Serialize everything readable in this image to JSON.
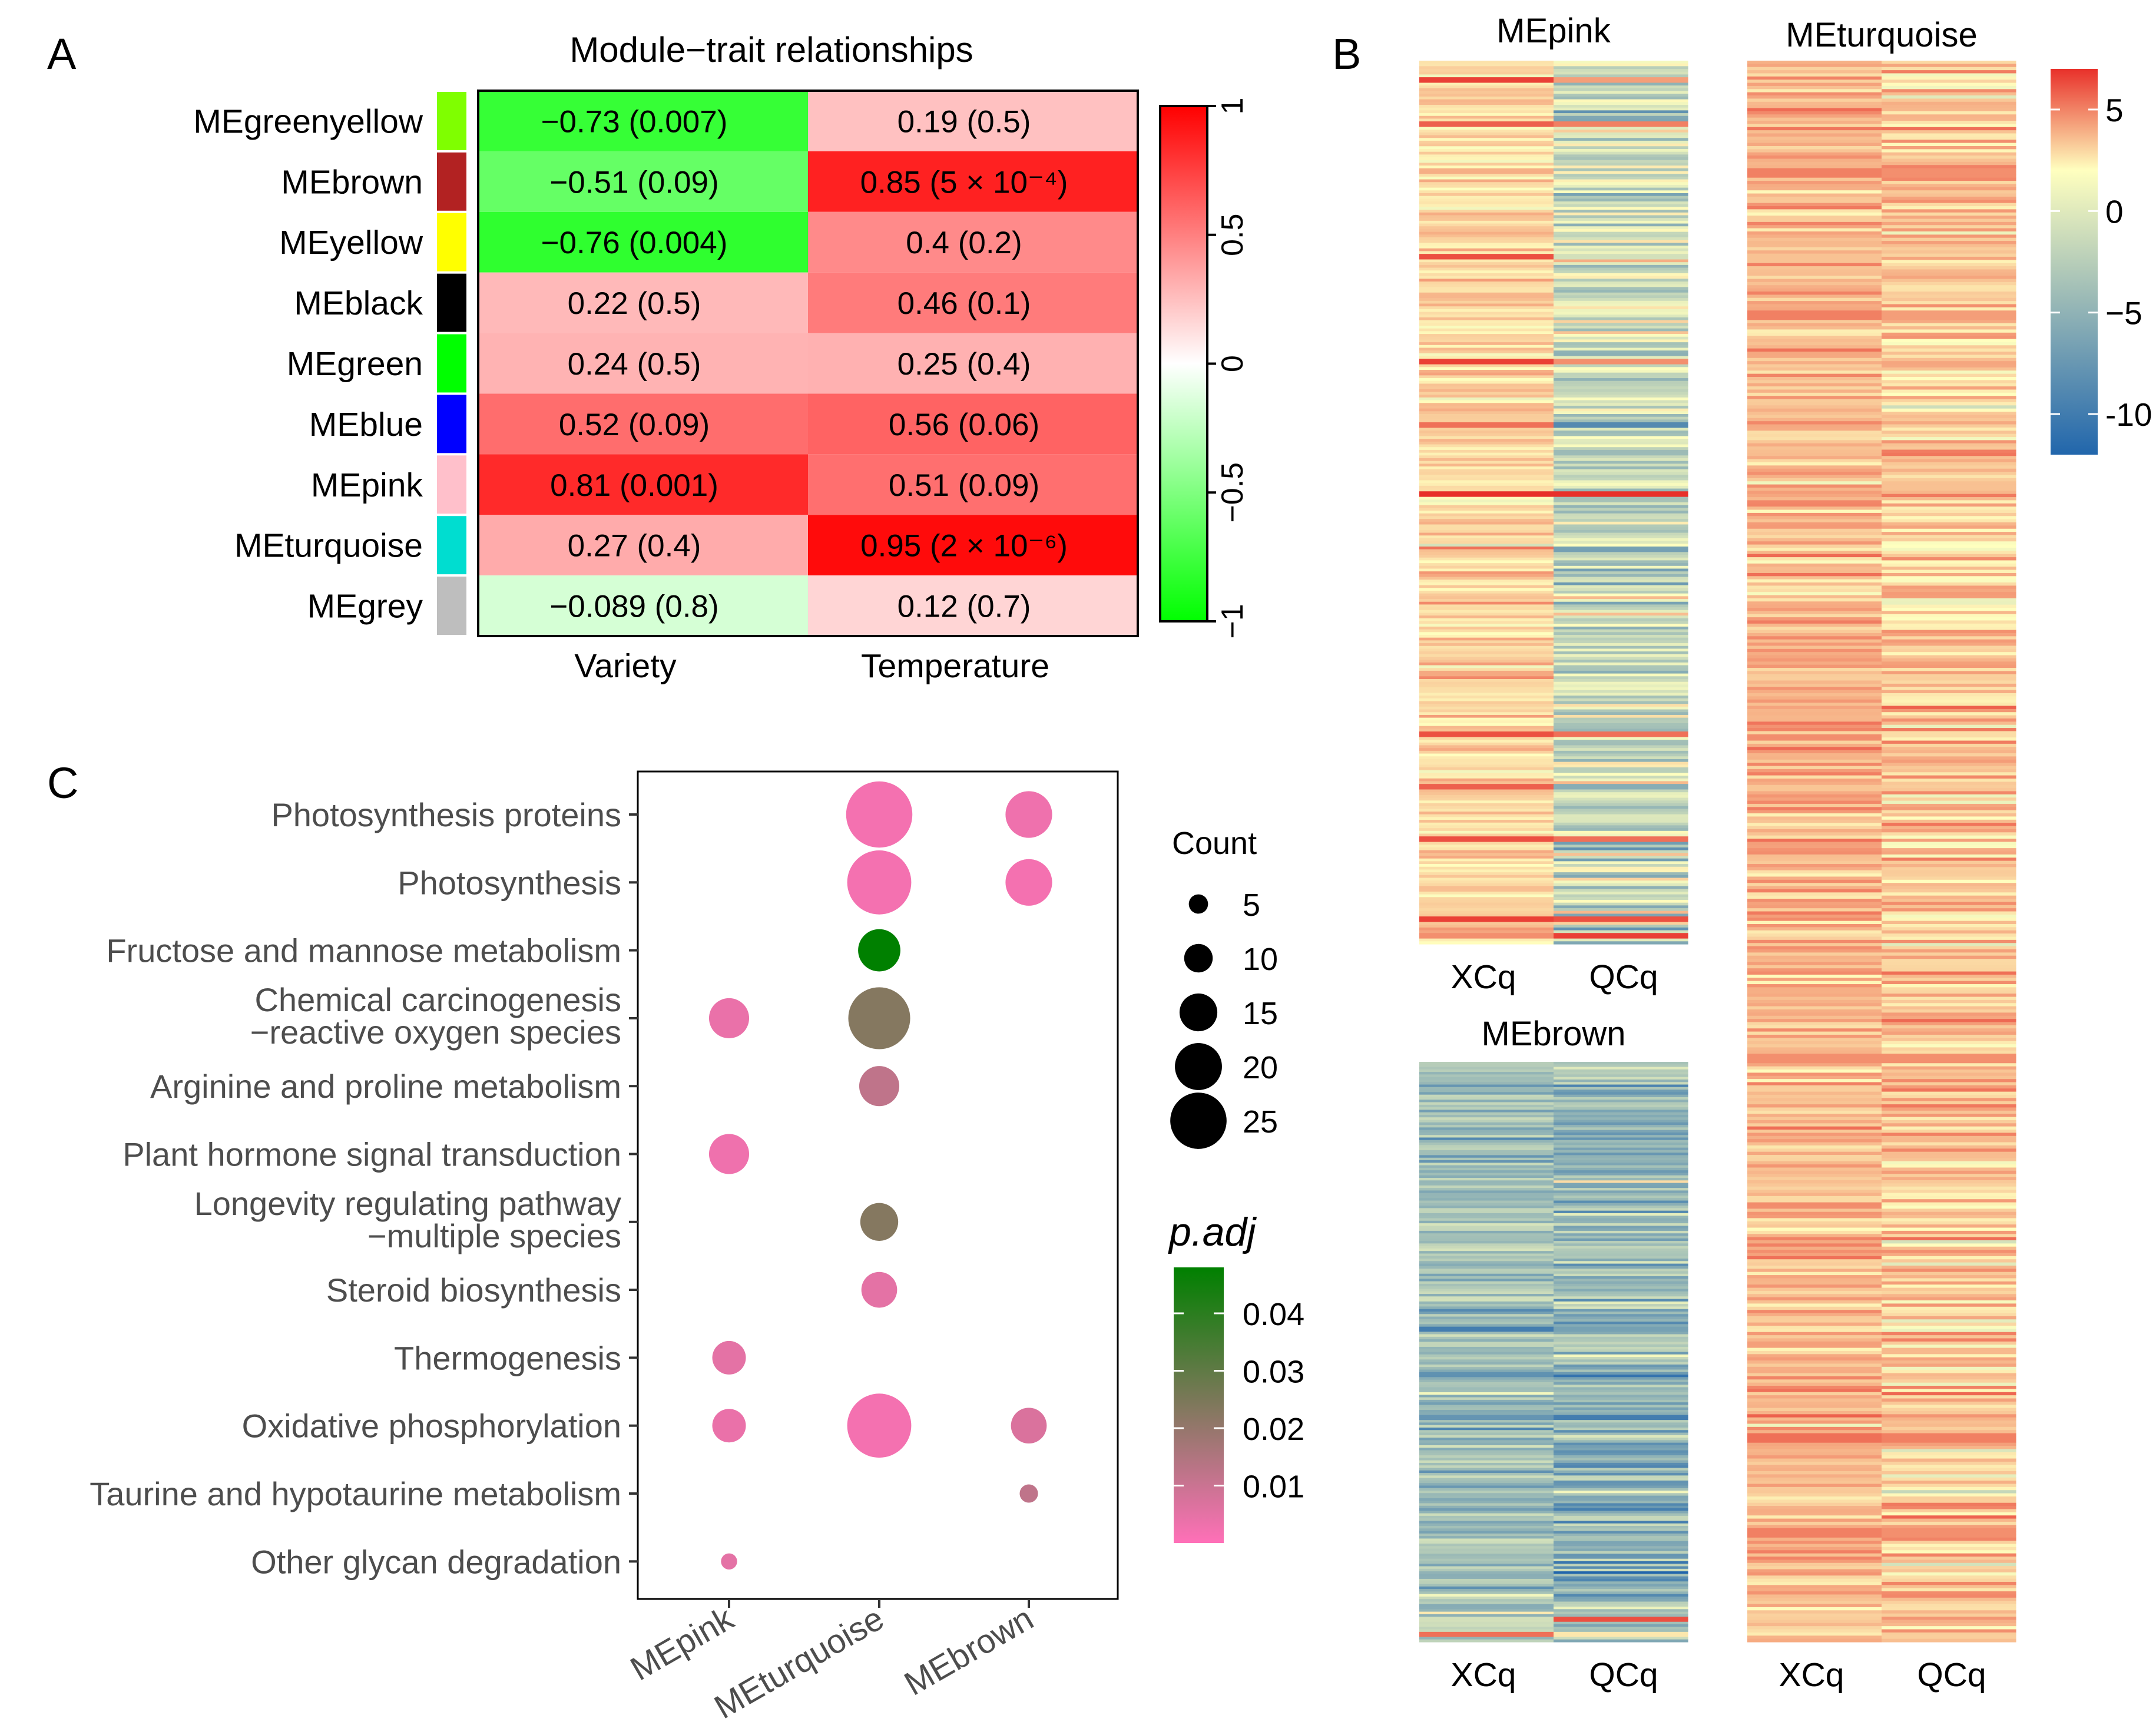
{
  "panel_labels": {
    "a": "A",
    "b": "B",
    "c": "C"
  },
  "colors": {
    "neg": "#00ff00",
    "zero": "#ffffff",
    "pos": "#ff0000",
    "heat_low": "#2166ac",
    "heat_mid": "#ffffbf",
    "heat_high": "#e8302a",
    "padj_low": "#ff70b8",
    "padj_high": "#008000",
    "module_swatches": [
      "#7fff00",
      "#b22222",
      "#ffff00",
      "#000000",
      "#00ff00",
      "#0000ff",
      "#ffc0cb",
      "#00ddd0",
      "#bebebe"
    ]
  },
  "chart_data": [
    {
      "panel": "A",
      "type": "heatmap",
      "title": "Module−trait relationships",
      "rows": [
        "MEgreenyellow",
        "MEbrown",
        "MEyellow",
        "MEblack",
        "MEgreen",
        "MEblue",
        "MEpink",
        "MEturquoise",
        "MEgrey"
      ],
      "columns": [
        "Variety",
        "Temperature"
      ],
      "values": [
        [
          -0.73,
          0.19
        ],
        [
          -0.51,
          0.85
        ],
        [
          -0.76,
          0.4
        ],
        [
          0.22,
          0.46
        ],
        [
          0.24,
          0.25
        ],
        [
          0.52,
          0.56
        ],
        [
          0.81,
          0.51
        ],
        [
          0.27,
          0.95
        ],
        [
          -0.089,
          0.12
        ]
      ],
      "cell_labels": [
        [
          "−0.73 (0.007)",
          "0.19 (0.5)"
        ],
        [
          "−0.51 (0.09)",
          "0.85 (5 × 10⁻⁴)"
        ],
        [
          "−0.76 (0.004)",
          "0.4 (0.2)"
        ],
        [
          "0.22 (0.5)",
          "0.46 (0.1)"
        ],
        [
          "0.24 (0.5)",
          "0.25  (0.4)"
        ],
        [
          "0.52 (0.09)",
          "0.56 (0.06)"
        ],
        [
          "0.81 (0.001)",
          "0.51 (0.09)"
        ],
        [
          "0.27 (0.4)",
          "0.95 (2 × 10⁻⁶)"
        ],
        [
          "−0.089 (0.8)",
          "0.12 (0.7)"
        ]
      ],
      "colorbar": {
        "range": [
          -1,
          1
        ],
        "ticks": [
          1,
          0.5,
          0,
          -0.5,
          -1
        ],
        "tick_labels": [
          "1",
          "0.5",
          "0",
          "−0.5",
          "−1"
        ]
      }
    },
    {
      "panel": "B",
      "type": "heatmap",
      "colorbar": {
        "range": [
          -12,
          7
        ],
        "ticks": [
          5,
          0,
          -5,
          -10
        ],
        "tick_labels": [
          "5",
          "0",
          "−5",
          "-10"
        ]
      },
      "maps": [
        {
          "title": "MEpink",
          "columns": [
            "XCq",
            "QCq"
          ],
          "n_genes": 320,
          "col_means": [
            1.5,
            -2.5
          ],
          "col_sd": [
            1.0,
            2.2
          ],
          "spikes": [
            [
              0.02,
              6.5,
              3.5
            ],
            [
              0.07,
              5.5,
              4.5
            ],
            [
              0.22,
              6.0,
              -2.0
            ],
            [
              0.34,
              6.5,
              4.0
            ],
            [
              0.41,
              5.0,
              -9.0
            ],
            [
              0.49,
              7.0,
              7.0
            ],
            [
              0.55,
              5.0,
              -7.0
            ],
            [
              0.76,
              6.0,
              5.0
            ],
            [
              0.82,
              5.5,
              -6.0
            ],
            [
              0.88,
              6.0,
              5.0
            ],
            [
              0.97,
              6.5,
              6.0
            ],
            [
              0.99,
              4.0,
              6.5
            ]
          ]
        },
        {
          "title": "MEbrown",
          "columns": [
            "XCq",
            "QCq"
          ],
          "n_genes": 230,
          "col_means": [
            -4.5,
            -5.5
          ],
          "col_sd": [
            1.7,
            2.1
          ],
          "spikes": [
            [
              0.13,
              -9.0,
              -8.0
            ],
            [
              0.46,
              -10.0,
              -7.0
            ],
            [
              0.61,
              -8.0,
              -10.0
            ],
            [
              0.96,
              -2.0,
              6.0
            ],
            [
              0.985,
              5.0,
              1.0
            ]
          ]
        },
        {
          "title": "MEturquoise",
          "columns": [
            "XCq",
            "QCq"
          ],
          "n_genes": 500,
          "col_means": [
            2.6,
            2.0
          ],
          "col_sd": [
            1.1,
            1.5
          ],
          "spikes": [
            [
              0.07,
              4.5,
              4.0
            ],
            [
              0.16,
              4.5,
              3.5
            ],
            [
              0.63,
              4.0,
              4.0
            ],
            [
              0.87,
              5.0,
              4.5
            ],
            [
              0.93,
              4.5,
              4.0
            ]
          ]
        }
      ]
    },
    {
      "panel": "C",
      "type": "scatter",
      "subtype": "dot_plot",
      "x_categories": [
        "MEpink",
        "MEturquoise",
        "MEbrown"
      ],
      "y_categories": [
        "Photosynthesis proteins",
        "Photosynthesis",
        "Fructose and mannose metabolism",
        [
          "Chemical carcinogenesis",
          "−reactive oxygen species"
        ],
        "Arginine and proline metabolism",
        "Plant hormone signal transduction",
        [
          "Longevity regulating pathway",
          "−multiple species"
        ],
        "Steroid biosynthesis",
        "Thermogenesis",
        "Oxidative phosphorylation",
        "Taurine and hypotaurine metabolism",
        "Other glycan degradation"
      ],
      "points": [
        {
          "x": 1,
          "y": 0,
          "count": 25,
          "padj": 0.002
        },
        {
          "x": 2,
          "y": 0,
          "count": 16,
          "padj": 0.003
        },
        {
          "x": 1,
          "y": 1,
          "count": 24,
          "padj": 0.002
        },
        {
          "x": 2,
          "y": 1,
          "count": 16,
          "padj": 0.002
        },
        {
          "x": 1,
          "y": 2,
          "count": 14,
          "padj": 0.048
        },
        {
          "x": 0,
          "y": 3,
          "count": 13,
          "padj": 0.004
        },
        {
          "x": 1,
          "y": 3,
          "count": 23,
          "padj": 0.023
        },
        {
          "x": 1,
          "y": 4,
          "count": 13,
          "padj": 0.012
        },
        {
          "x": 0,
          "y": 5,
          "count": 13,
          "padj": 0.003
        },
        {
          "x": 1,
          "y": 6,
          "count": 12,
          "padj": 0.023
        },
        {
          "x": 1,
          "y": 7,
          "count": 11,
          "padj": 0.005
        },
        {
          "x": 0,
          "y": 8,
          "count": 10,
          "padj": 0.005
        },
        {
          "x": 0,
          "y": 9,
          "count": 10,
          "padj": 0.004
        },
        {
          "x": 1,
          "y": 9,
          "count": 24,
          "padj": 0.002
        },
        {
          "x": 2,
          "y": 9,
          "count": 11,
          "padj": 0.007
        },
        {
          "x": 2,
          "y": 10,
          "count": 3,
          "padj": 0.012
        },
        {
          "x": 0,
          "y": 11,
          "count": 2,
          "padj": 0.005
        }
      ],
      "size_legend": {
        "title": "Count",
        "values": [
          5,
          10,
          15,
          20,
          25
        ],
        "labels": [
          "5",
          "10",
          "15",
          "20",
          "25"
        ]
      },
      "color_legend": {
        "title": "p.adj",
        "range": [
          0.0,
          0.048
        ],
        "ticks": [
          0.04,
          0.03,
          0.02,
          0.01
        ],
        "tick_labels": [
          "0.04",
          "0.03",
          "0.02",
          "0.01"
        ]
      }
    }
  ]
}
